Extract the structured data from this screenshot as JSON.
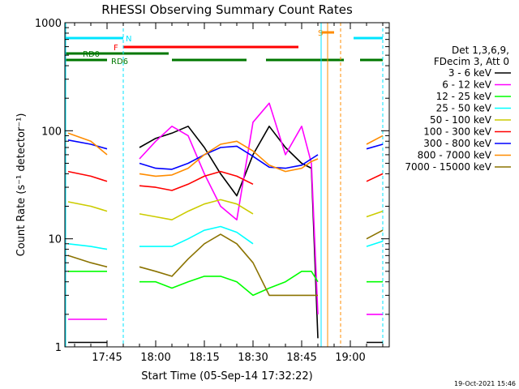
{
  "chart_data": {
    "type": "line",
    "title": "RHESSI Observing Summary Count Rates",
    "xlabel": "Start Time (05-Sep-14 17:32:22)",
    "ylabel": "Count Rate (s⁻¹ detector⁻¹)",
    "yscale": "log",
    "ylim": [
      1,
      1000
    ],
    "xlim": [
      "17:32",
      "19:12"
    ],
    "x_ticks": [
      "17:45",
      "18:00",
      "18:15",
      "18:30",
      "18:45",
      "19:00"
    ],
    "y_ticks": [
      "1",
      "10",
      "100",
      "1000"
    ],
    "grid": false,
    "legend_position": "right",
    "legend_header": [
      "Det 1,3,6,9,",
      "FDecim 3, Att 0"
    ],
    "timestamp": "19-Oct-2021 15:46",
    "flags": [
      {
        "label": "N",
        "color": "#00e5ff",
        "segments": [
          [
            "17:32",
            "17:50"
          ],
          [
            "19:01",
            "19:10"
          ]
        ]
      },
      {
        "label": "F",
        "color": "#ff0000",
        "segments": [
          [
            "17:50",
            "18:44"
          ]
        ]
      },
      {
        "label": "RD0",
        "color": "#007700",
        "segments": [
          [
            "17:32",
            "18:04"
          ]
        ]
      },
      {
        "label": "RD6",
        "color": "#007700",
        "segments": [
          [
            "17:32",
            "17:45"
          ],
          [
            "18:05",
            "18:28"
          ],
          [
            "18:34",
            "18:58"
          ],
          [
            "19:03",
            "19:10"
          ]
        ]
      },
      {
        "label": "S",
        "color": "#ff8c00",
        "segments": [
          [
            "18:51",
            "18:55"
          ]
        ]
      }
    ],
    "series": [
      {
        "name": "3 - 6 keV",
        "color": "#000000",
        "x": [
          "17:33",
          "17:40",
          "17:45",
          "17:50",
          "17:55",
          "18:00",
          "18:05",
          "18:10",
          "18:15",
          "18:20",
          "18:25",
          "18:30",
          "18:35",
          "18:40",
          "18:45",
          "18:48",
          "18:50",
          "18:55",
          "19:00",
          "19:05",
          "19:10"
        ],
        "values": [
          1.1,
          1.1,
          1.1,
          null,
          70,
          85,
          95,
          110,
          70,
          40,
          25,
          60,
          110,
          70,
          50,
          45,
          1.2,
          null,
          null,
          1.1,
          1.1
        ]
      },
      {
        "name": "6 - 12 keV",
        "color": "#ff00ff",
        "x": [
          "17:33",
          "17:40",
          "17:45",
          "17:50",
          "17:55",
          "18:00",
          "18:05",
          "18:10",
          "18:15",
          "18:20",
          "18:25",
          "18:30",
          "18:35",
          "18:40",
          "18:45",
          "18:48",
          "18:50",
          "18:55",
          "19:00",
          "19:05",
          "19:10"
        ],
        "values": [
          1.8,
          1.8,
          1.8,
          null,
          55,
          80,
          110,
          90,
          40,
          20,
          15,
          120,
          180,
          60,
          110,
          50,
          2,
          null,
          null,
          2,
          2
        ]
      },
      {
        "name": "12 - 25 keV",
        "color": "#00ff00",
        "x": [
          "17:33",
          "17:40",
          "17:45",
          "17:50",
          "17:55",
          "18:00",
          "18:05",
          "18:10",
          "18:15",
          "18:20",
          "18:25",
          "18:30",
          "18:35",
          "18:40",
          "18:45",
          "18:48",
          "18:50",
          "18:55",
          "19:00",
          "19:05",
          "19:10"
        ],
        "values": [
          5,
          5,
          5,
          null,
          4,
          4,
          3.5,
          4,
          4.5,
          4.5,
          4,
          3,
          3.5,
          4,
          5,
          5,
          4,
          null,
          null,
          4,
          4
        ]
      },
      {
        "name": "25 - 50 keV",
        "color": "#00ffff",
        "x": [
          "17:33",
          "17:40",
          "17:45",
          "17:50",
          "17:55",
          "18:00",
          "18:05",
          "18:10",
          "18:15",
          "18:20",
          "18:25",
          "18:30",
          "18:35",
          "18:40",
          "18:45",
          "18:48",
          "18:50",
          "18:55",
          "19:00",
          "19:05",
          "19:10"
        ],
        "values": [
          9,
          8.5,
          8,
          null,
          8.5,
          8.5,
          8.5,
          10,
          12,
          13,
          11.5,
          9,
          null,
          null,
          null,
          null,
          null,
          null,
          null,
          8.5,
          9.5
        ]
      },
      {
        "name": "50 - 100 keV",
        "color": "#cccc00",
        "x": [
          "17:33",
          "17:40",
          "17:45",
          "17:50",
          "17:55",
          "18:00",
          "18:05",
          "18:10",
          "18:15",
          "18:20",
          "18:25",
          "18:30",
          "18:35",
          "18:40",
          "18:45",
          "18:48",
          "18:50",
          "18:55",
          "19:00",
          "19:05",
          "19:10"
        ],
        "values": [
          22,
          20,
          18,
          null,
          17,
          16,
          15,
          18,
          21,
          23,
          21,
          17,
          null,
          null,
          null,
          null,
          null,
          null,
          null,
          16,
          18
        ]
      },
      {
        "name": "100 - 300 keV",
        "color": "#ff0000",
        "x": [
          "17:33",
          "17:40",
          "17:45",
          "17:50",
          "17:55",
          "18:00",
          "18:05",
          "18:10",
          "18:15",
          "18:20",
          "18:25",
          "18:30",
          "18:35",
          "18:40",
          "18:45",
          "18:48",
          "18:50",
          "18:55",
          "19:00",
          "19:05",
          "19:10"
        ],
        "values": [
          42,
          38,
          34,
          null,
          31,
          30,
          28,
          32,
          38,
          42,
          38,
          32,
          null,
          null,
          null,
          null,
          null,
          null,
          null,
          34,
          40
        ]
      },
      {
        "name": "300 - 800 keV",
        "color": "#0000ff",
        "x": [
          "17:33",
          "17:40",
          "17:45",
          "17:50",
          "17:55",
          "18:00",
          "18:05",
          "18:10",
          "18:15",
          "18:20",
          "18:25",
          "18:30",
          "18:35",
          "18:40",
          "18:45",
          "18:48",
          "18:50",
          "18:55",
          "19:00",
          "19:05",
          "19:10"
        ],
        "values": [
          82,
          75,
          68,
          null,
          50,
          45,
          44,
          50,
          60,
          70,
          72,
          58,
          46,
          45,
          48,
          55,
          60,
          null,
          null,
          68,
          75
        ]
      },
      {
        "name": "800 - 7000 keV",
        "color": "#ff8c00",
        "x": [
          "17:33",
          "17:40",
          "17:45",
          "17:50",
          "17:55",
          "18:00",
          "18:05",
          "18:10",
          "18:15",
          "18:20",
          "18:25",
          "18:30",
          "18:35",
          "18:40",
          "18:45",
          "18:48",
          "18:50",
          "18:55",
          "19:00",
          "19:05",
          "19:10"
        ],
        "values": [
          95,
          80,
          60,
          null,
          40,
          38,
          39,
          45,
          60,
          75,
          80,
          65,
          48,
          42,
          45,
          52,
          55,
          null,
          null,
          75,
          90
        ]
      },
      {
        "name": "7000 - 15000 keV",
        "color": "#8b7300",
        "x": [
          "17:33",
          "17:40",
          "17:45",
          "17:50",
          "17:55",
          "18:00",
          "18:05",
          "18:10",
          "18:15",
          "18:20",
          "18:25",
          "18:30",
          "18:35",
          "18:40",
          "18:45",
          "18:48",
          "18:50",
          "18:55",
          "19:00",
          "19:05",
          "19:10"
        ],
        "values": [
          7,
          6,
          5.5,
          null,
          5.5,
          5,
          4.5,
          6.5,
          9,
          11,
          9,
          6,
          3,
          3,
          3,
          3,
          3,
          null,
          null,
          10,
          12
        ]
      }
    ]
  }
}
